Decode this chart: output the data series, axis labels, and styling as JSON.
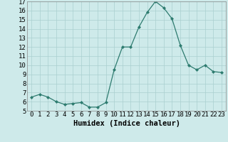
{
  "x": [
    0,
    1,
    2,
    3,
    4,
    5,
    6,
    7,
    8,
    9,
    10,
    11,
    12,
    13,
    14,
    15,
    16,
    17,
    18,
    19,
    20,
    21,
    22,
    23
  ],
  "y": [
    6.5,
    6.8,
    6.5,
    6.0,
    5.7,
    5.8,
    5.9,
    5.4,
    5.4,
    5.9,
    9.5,
    12.0,
    12.0,
    14.2,
    15.8,
    17.0,
    16.3,
    15.1,
    12.2,
    10.0,
    9.5,
    10.0,
    9.3,
    9.2
  ],
  "xlabel": "Humidex (Indice chaleur)",
  "ylim": [
    5,
    17
  ],
  "xlim": [
    -0.5,
    23.5
  ],
  "yticks": [
    5,
    6,
    7,
    8,
    9,
    10,
    11,
    12,
    13,
    14,
    15,
    16,
    17
  ],
  "xticks": [
    0,
    1,
    2,
    3,
    4,
    5,
    6,
    7,
    8,
    9,
    10,
    11,
    12,
    13,
    14,
    15,
    16,
    17,
    18,
    19,
    20,
    21,
    22,
    23
  ],
  "line_color": "#2d7b6f",
  "marker_color": "#2d7b6f",
  "bg_color": "#ceeaea",
  "grid_color": "#aacfcf",
  "font_size": 6.5,
  "xlabel_fontsize": 7.5
}
